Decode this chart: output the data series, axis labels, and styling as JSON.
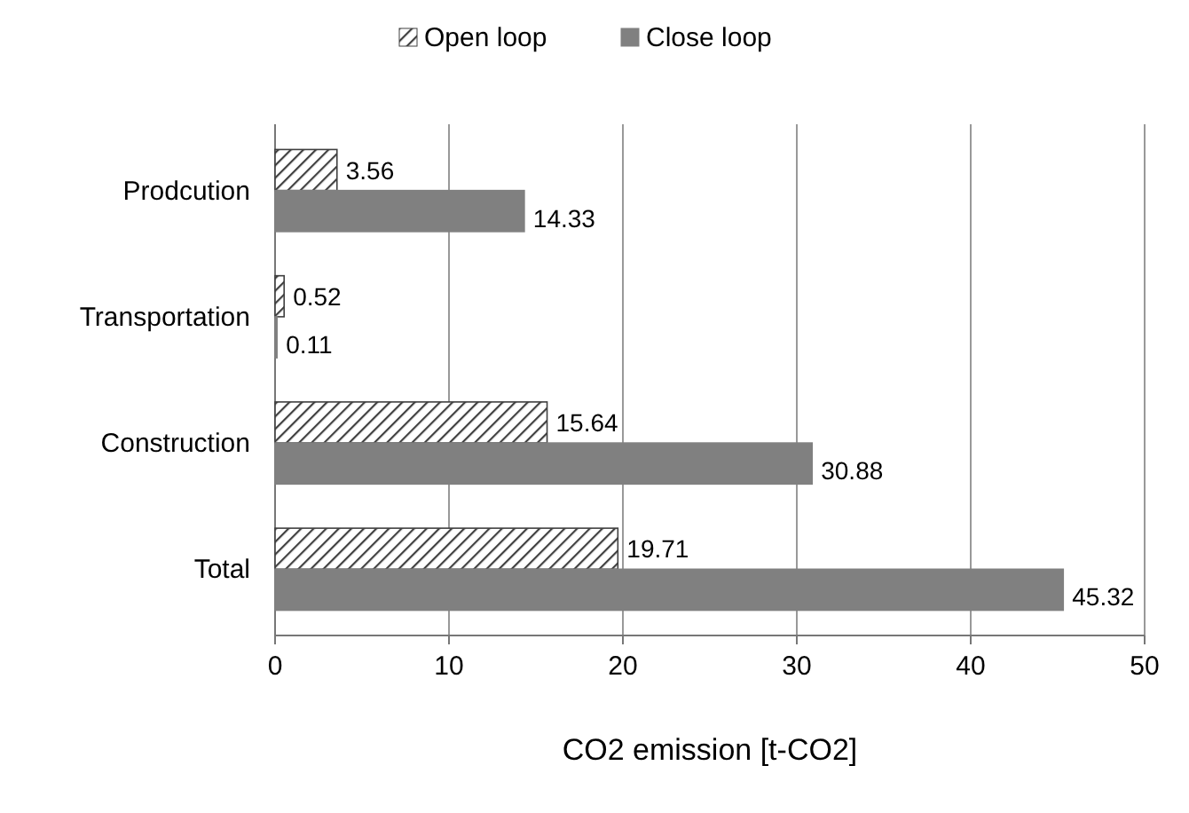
{
  "chart_data": {
    "type": "bar",
    "orientation": "horizontal",
    "xlabel": "CO2  emission [t-CO2]",
    "categories": [
      "Prodcution",
      "Transportation",
      "Construction",
      "Total"
    ],
    "series": [
      {
        "name": "Open loop",
        "color": "#404040",
        "values": [
          3.56,
          0.52,
          15.64,
          19.71
        ]
      },
      {
        "name": "Close loop",
        "color": "#808080",
        "values": [
          14.33,
          0.11,
          30.88,
          45.32
        ]
      }
    ],
    "xlim": [
      0,
      50
    ],
    "xticks": [
      0,
      10,
      20,
      30,
      40,
      50
    ],
    "grid": "x",
    "legend": "top",
    "data_labels": true
  }
}
